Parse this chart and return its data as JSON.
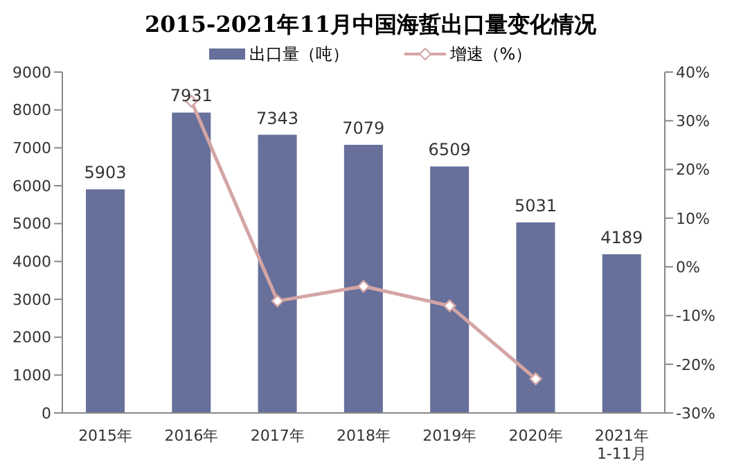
{
  "chart_data": {
    "type": "bar",
    "title": "2015-2021年11月中国海蜇出口量变化情况",
    "categories": [
      "2015年",
      "2016年",
      "2017年",
      "2018年",
      "2019年",
      "2020年",
      "2021年\n1-11月"
    ],
    "series": [
      {
        "name": "出口量（吨）",
        "color": "#66709a",
        "values": [
          5903,
          7931,
          7343,
          7079,
          6509,
          5031,
          4189
        ],
        "value_labels": [
          "5903",
          "7931",
          "7343",
          "7079",
          "6509",
          "5031",
          "4189"
        ]
      },
      {
        "name": "增速（%）",
        "type": "line",
        "axis": "y2",
        "color": "#d4a5a5",
        "values": [
          null,
          34,
          -7,
          -4,
          -8,
          -23,
          null
        ]
      }
    ],
    "ylim": [
      0,
      9000
    ],
    "yticks": [
      0,
      1000,
      2000,
      3000,
      4000,
      5000,
      6000,
      7000,
      8000,
      9000
    ],
    "y2lim": [
      -30,
      40
    ],
    "y2ticks": [
      {
        "value": -30,
        "label": "-30%"
      },
      {
        "value": -20,
        "label": "-20%"
      },
      {
        "value": -10,
        "label": "-10%"
      },
      {
        "value": 0,
        "label": "0%"
      },
      {
        "value": 10,
        "label": "10%"
      },
      {
        "value": 20,
        "label": "20%"
      },
      {
        "value": 30,
        "label": "30%"
      },
      {
        "value": 40,
        "label": "40%"
      }
    ],
    "grid": false,
    "legend": "top",
    "marker": "diamond",
    "line_style": "solid"
  }
}
